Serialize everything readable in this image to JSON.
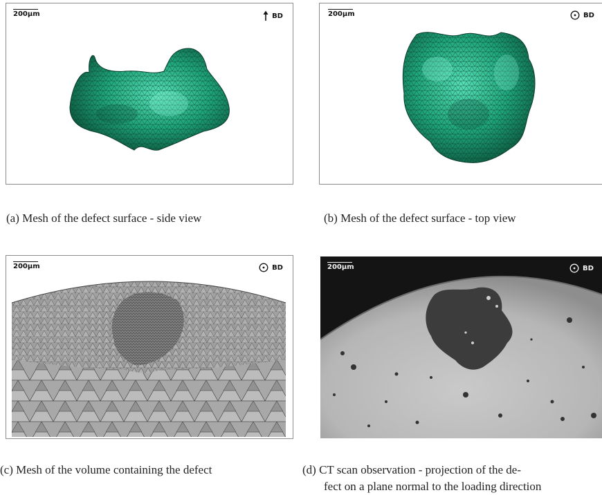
{
  "panels": {
    "a": {
      "scale": "200µm",
      "bd": "BD",
      "bd_symbol": "arrow-up-icon"
    },
    "b": {
      "scale": "200µm",
      "bd": "BD",
      "bd_symbol": "circle-dot-icon"
    },
    "c": {
      "scale": "200µm",
      "bd": "BD",
      "bd_symbol": "circle-dot-icon"
    },
    "d": {
      "scale": "200µm",
      "bd": "BD",
      "bd_symbol": "circle-dot-icon"
    }
  },
  "captions": {
    "a": "(a) Mesh of the defect surface - side view",
    "b": "(b) Mesh of the defect surface - top view",
    "c": "(c) Mesh of the volume containing the defect",
    "d_line1": "(d) CT scan observation - projection of the de-",
    "d_line2": "fect on a plane normal to the loading direction"
  },
  "colors": {
    "mesh_green": "#1fa57a",
    "mesh_grey": "#9a9a9a",
    "ct_background": "#1a1a1a",
    "ct_material": "#bdbdbd"
  }
}
